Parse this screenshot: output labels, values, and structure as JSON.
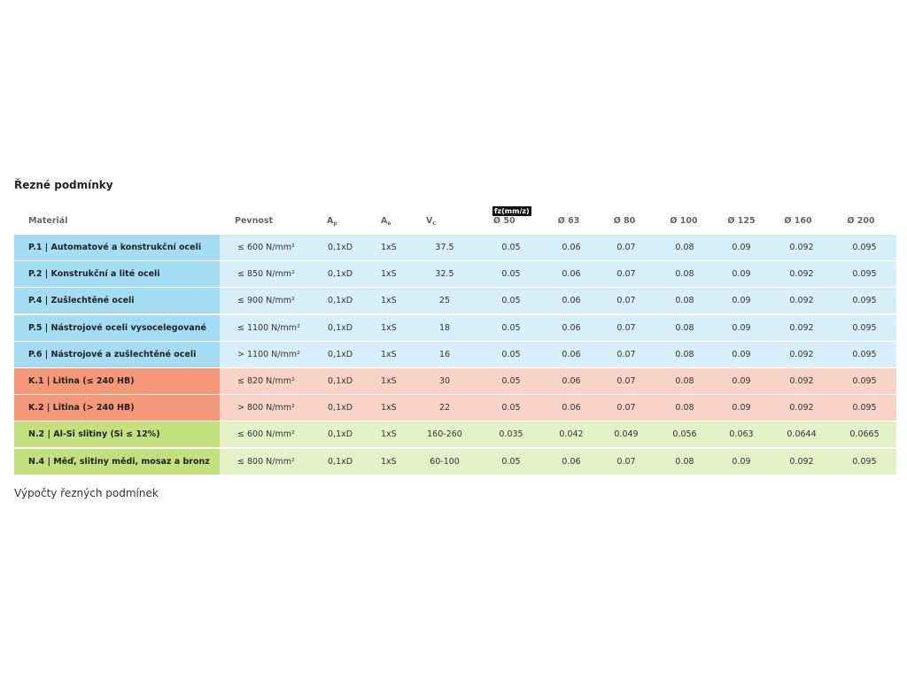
{
  "title": "Řezné podmínky",
  "table": {
    "badge": "fz(mm/z)",
    "header": [
      {
        "text": "Materiál"
      },
      {
        "text": "Pevnost"
      },
      {
        "text": "A",
        "sub": "p"
      },
      {
        "text": "A",
        "sub": "e"
      },
      {
        "text": "V",
        "sub": "c"
      },
      {
        "text": "Ø 50"
      },
      {
        "text": "Ø 63"
      },
      {
        "text": "Ø 80"
      },
      {
        "text": "Ø 100"
      },
      {
        "text": "Ø 125"
      },
      {
        "text": "Ø 160"
      },
      {
        "text": "Ø 200"
      }
    ],
    "rows": [
      {
        "accent": "#a3dcf3",
        "fill": "#d6eff9",
        "cells": [
          "P.1 | Automatové a konstrukční oceli",
          "≤ 600 N/mm²",
          "0,1xD",
          "1xS",
          "37.5",
          "0.05",
          "0.06",
          "0.07",
          "0.08",
          "0.09",
          "0.092",
          "0.095"
        ]
      },
      {
        "accent": "#a3dcf3",
        "fill": "#d6eff9",
        "cells": [
          "P.2 | Konstrukční a lité oceli",
          "≤ 850 N/mm²",
          "0,1xD",
          "1xS",
          "32.5",
          "0.05",
          "0.06",
          "0.07",
          "0.08",
          "0.09",
          "0.092",
          "0.095"
        ]
      },
      {
        "accent": "#a3dcf3",
        "fill": "#d6eff9",
        "cells": [
          "P.4 | Zušlechtěné oceli",
          "≤ 900 N/mm²",
          "0,1xD",
          "1xS",
          "25",
          "0.05",
          "0.06",
          "0.07",
          "0.08",
          "0.09",
          "0.092",
          "0.095"
        ]
      },
      {
        "accent": "#a3dcf3",
        "fill": "#d6eff9",
        "cells": [
          "P.5 | Nástrojové oceli vysocelegované",
          "≤ 1100 N/mm²",
          "0,1xD",
          "1xS",
          "18",
          "0.05",
          "0.06",
          "0.07",
          "0.08",
          "0.09",
          "0.092",
          "0.095"
        ]
      },
      {
        "accent": "#a3dcf3",
        "fill": "#d6eff9",
        "cells": [
          "P.6 | Nástrojové a zušlechtěné oceli",
          "> 1100 N/mm²",
          "0,1xD",
          "1xS",
          "16",
          "0.05",
          "0.06",
          "0.07",
          "0.08",
          "0.09",
          "0.092",
          "0.095"
        ]
      },
      {
        "accent": "#f59779",
        "fill": "#f9d4c6",
        "cells": [
          "K.1 | Litina (≤ 240 HB)",
          "≤ 820 N/mm²",
          "0,1xD",
          "1xS",
          "30",
          "0.05",
          "0.06",
          "0.07",
          "0.08",
          "0.09",
          "0.092",
          "0.095"
        ]
      },
      {
        "accent": "#f59779",
        "fill": "#f9d4c6",
        "cells": [
          "K.2 | Litina (> 240 HB)",
          "> 800 N/mm²",
          "0,1xD",
          "1xS",
          "22",
          "0.05",
          "0.06",
          "0.07",
          "0.08",
          "0.09",
          "0.092",
          "0.095"
        ]
      },
      {
        "accent": "#c3e07f",
        "fill": "#e4f0c6",
        "cells": [
          "N.2 | Al-Si slitiny (Si ≤ 12%)",
          "≤ 600 N/mm²",
          "0,1xD",
          "1xS",
          "160-260",
          "0.035",
          "0.042",
          "0.049",
          "0.056",
          "0.063",
          "0.0644",
          "0.0665"
        ]
      },
      {
        "accent": "#c3e07f",
        "fill": "#e4f0c6",
        "cells": [
          "N.4 | Měď, slitiny mědi, mosaz a bronz",
          "≤ 800 N/mm²",
          "0,1xD",
          "1xS",
          "60-100",
          "0.05",
          "0.06",
          "0.07",
          "0.08",
          "0.09",
          "0.092",
          "0.095"
        ]
      }
    ]
  },
  "footer": "Výpočty řezných podmínek"
}
